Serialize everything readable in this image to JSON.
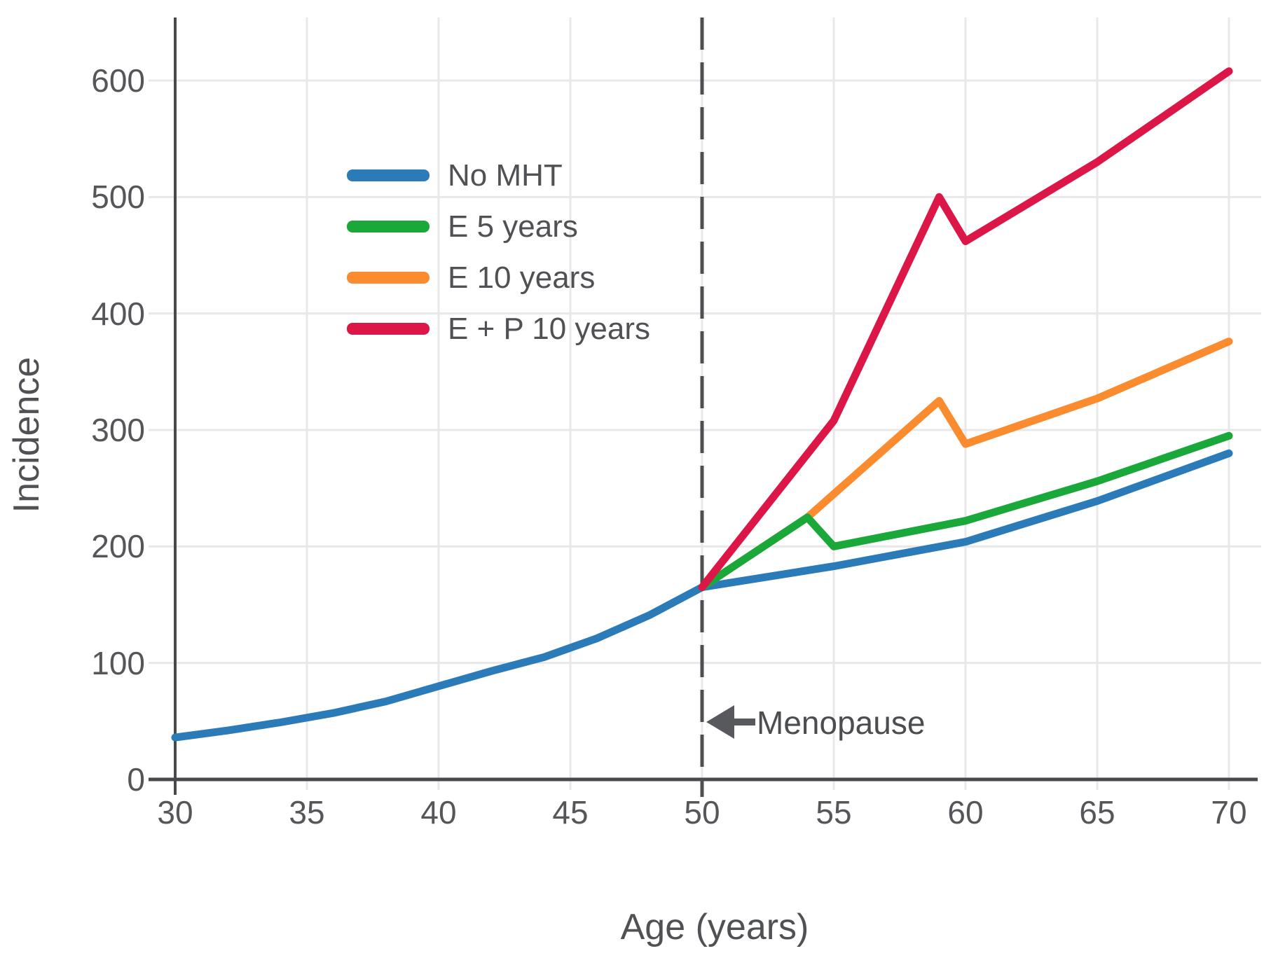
{
  "chart_data": {
    "type": "line",
    "title": "",
    "xlabel": "Age (years)",
    "ylabel": "Incidence",
    "xlim": [
      30,
      70
    ],
    "ylim": [
      0,
      650
    ],
    "grid": true,
    "legend_position": "upper-left-inside",
    "x_ticks": [
      "30",
      "35",
      "40",
      "45",
      "50",
      "55",
      "60",
      "65",
      "70"
    ],
    "y_ticks": [
      "0",
      "100",
      "200",
      "300",
      "400",
      "500",
      "600"
    ],
    "x_tick_values": [
      30,
      35,
      40,
      45,
      50,
      55,
      60,
      65,
      70
    ],
    "y_tick_values": [
      0,
      100,
      200,
      300,
      400,
      500,
      600
    ],
    "annotation": {
      "text": "Menopause",
      "x": 50,
      "arrow": "left-arrow-icon"
    },
    "series": [
      {
        "name": "No MHT",
        "color": "#2b7bb9",
        "x": [
          30,
          32,
          34,
          36,
          38,
          40,
          42,
          44,
          46,
          48,
          50,
          55,
          60,
          65,
          70
        ],
        "y": [
          36,
          42,
          49,
          57,
          67,
          80,
          93,
          105,
          121,
          141,
          165,
          183,
          204,
          239,
          280
        ]
      },
      {
        "name": "E 5 years",
        "color": "#1aa83b",
        "x": [
          50,
          54,
          55,
          60,
          65,
          70
        ],
        "y": [
          165,
          225,
          200,
          222,
          256,
          295
        ]
      },
      {
        "name": "E 10 years",
        "color": "#fa8b2e",
        "x": [
          50,
          54,
          59,
          60,
          65,
          70
        ],
        "y": [
          165,
          225,
          325,
          288,
          327,
          376
        ]
      },
      {
        "name": "E + P 10 years",
        "color": "#dc1748",
        "x": [
          50,
          55,
          59,
          60,
          65,
          70
        ],
        "y": [
          165,
          308,
          500,
          462,
          530,
          608
        ]
      }
    ],
    "dashed_line_color": "#4d4f52",
    "axis_color": "#47494c",
    "grid_color": "#e8e8e8"
  }
}
